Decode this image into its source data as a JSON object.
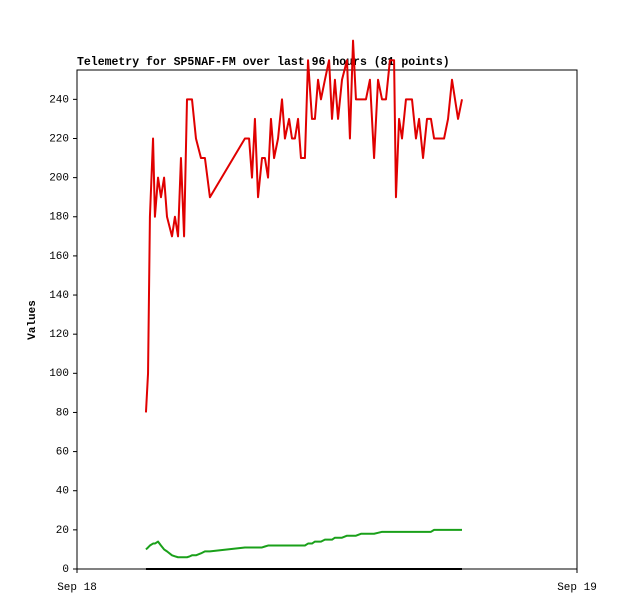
{
  "chart_data": {
    "type": "line",
    "title": "Telemetry for SP5NAF-FM over last 96 hours (81 points)",
    "y_label": "Values",
    "x": [
      3.31,
      3.41,
      3.5,
      3.65,
      3.74,
      3.89,
      4.03,
      4.18,
      4.32,
      4.56,
      4.7,
      4.85,
      4.99,
      5.14,
      5.28,
      5.42,
      5.52,
      5.71,
      5.95,
      6.14,
      6.38,
      8.06,
      8.26,
      8.4,
      8.54,
      8.69,
      8.88,
      9.02,
      9.17,
      9.31,
      9.46,
      9.65,
      9.84,
      9.98,
      10.18,
      10.32,
      10.46,
      10.61,
      10.75,
      10.94,
      11.09,
      11.28,
      11.42,
      11.57,
      11.71,
      11.9,
      12.1,
      12.24,
      12.38,
      12.53,
      12.72,
      12.96,
      13.1,
      13.25,
      13.39,
      13.63,
      13.87,
      14.06,
      14.26,
      14.45,
      14.64,
      14.83,
      15.02,
      15.22,
      15.31,
      15.46,
      15.6,
      15.79,
      16.08,
      16.27,
      16.42,
      16.61,
      16.8,
      16.99,
      17.14,
      17.33,
      17.62,
      17.81,
      18.0,
      18.29,
      18.48
    ],
    "series": [
      {
        "color": "#e00000",
        "values": [
          80,
          100,
          180,
          220,
          180,
          200,
          190,
          200,
          180,
          170,
          180,
          170,
          210,
          170,
          240,
          240,
          240,
          220,
          210,
          210,
          190,
          220,
          220,
          200,
          230,
          190,
          210,
          210,
          200,
          230,
          210,
          220,
          240,
          220,
          230,
          220,
          220,
          230,
          210,
          210,
          260,
          230,
          230,
          250,
          240,
          250,
          260,
          230,
          250,
          230,
          250,
          260,
          220,
          270,
          240,
          240,
          240,
          250,
          210,
          250,
          240,
          240,
          260,
          260,
          190,
          230,
          220,
          240,
          240,
          220,
          230,
          210,
          230,
          230,
          220,
          220,
          220,
          230,
          250,
          230,
          240
        ]
      },
      {
        "color": "#1aa01a",
        "values": [
          10,
          11,
          12,
          13,
          13,
          14,
          12,
          10,
          9,
          7,
          6.5,
          6,
          6,
          6,
          6,
          6.5,
          7,
          7,
          8,
          9,
          9,
          11,
          11,
          11,
          11,
          11,
          11,
          11.5,
          12,
          12,
          12,
          12,
          12,
          12,
          12,
          12,
          12,
          12,
          12,
          12,
          13,
          13,
          14,
          14,
          14,
          15,
          15,
          15,
          16,
          16,
          16,
          17,
          17,
          17,
          17,
          18,
          18,
          18,
          18,
          18.5,
          19,
          19,
          19,
          19,
          19,
          19,
          19,
          19,
          19,
          19,
          19,
          19,
          19,
          19,
          20,
          20,
          20,
          20,
          20,
          20,
          20
        ]
      },
      {
        "color": "#000000",
        "values": [
          0,
          0,
          0,
          0,
          0,
          0,
          0,
          0,
          0,
          0,
          0,
          0,
          0,
          0,
          0,
          0,
          0,
          0,
          0,
          0,
          0,
          0,
          0,
          0,
          0,
          0,
          0,
          0,
          0,
          0,
          0,
          0,
          0,
          0,
          0,
          0,
          0,
          0,
          0,
          0,
          0,
          0,
          0,
          0,
          0,
          0,
          0,
          0,
          0,
          0,
          0,
          0,
          0,
          0,
          0,
          0,
          0,
          0,
          0,
          0,
          0,
          0,
          0,
          0,
          0,
          0,
          0,
          0,
          0,
          0,
          0,
          0,
          0,
          0,
          0,
          0,
          0,
          0,
          0,
          0,
          0
        ]
      }
    ],
    "xlim": [
      0,
      24
    ],
    "xticks": [
      {
        "value": 0,
        "label": "Sep 18"
      },
      {
        "value": 24,
        "label": "Sep 19"
      }
    ],
    "ylim": [
      0,
      255
    ],
    "yticks": [
      0,
      20,
      40,
      60,
      80,
      100,
      120,
      140,
      160,
      180,
      200,
      220,
      240
    ]
  }
}
